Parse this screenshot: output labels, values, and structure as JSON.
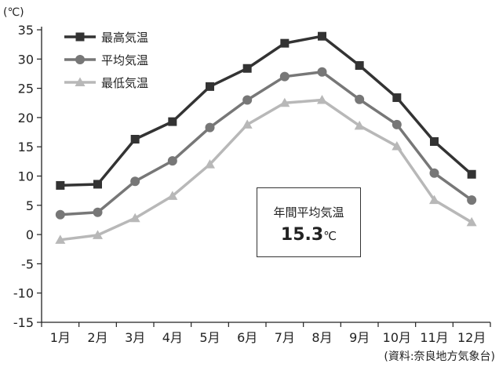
{
  "unit_label": "(℃)",
  "source": "(資料:奈良地方気象台)",
  "annual": {
    "label": "年間平均気温",
    "value": "15.3",
    "unit": "℃"
  },
  "chart_data": {
    "type": "line",
    "categories": [
      "1月",
      "2月",
      "3月",
      "4月",
      "5月",
      "6月",
      "7月",
      "8月",
      "9月",
      "10月",
      "11月",
      "12月"
    ],
    "ylim": [
      -15,
      35
    ],
    "yticks": [
      "35",
      "30",
      "25",
      "20",
      "15",
      "10",
      "5",
      "0",
      "-5",
      "-10",
      "-15"
    ],
    "grid": false,
    "legend_position": "top-left",
    "series": [
      {
        "name": "最高気温",
        "marker": "square",
        "color": "#333333",
        "values": [
          8.4,
          8.6,
          16.3,
          19.3,
          25.3,
          28.4,
          32.7,
          33.9,
          28.9,
          23.4,
          15.9,
          10.3
        ]
      },
      {
        "name": "平均気温",
        "marker": "circle",
        "color": "#777777",
        "values": [
          3.4,
          3.8,
          9.1,
          12.6,
          18.3,
          23.0,
          27.0,
          27.8,
          23.1,
          18.8,
          10.5,
          5.9
        ]
      },
      {
        "name": "最低気温",
        "marker": "triangle",
        "color": "#b8b8b8",
        "values": [
          -0.9,
          -0.1,
          2.8,
          6.6,
          12.0,
          18.8,
          22.5,
          23.0,
          18.6,
          15.1,
          5.9,
          2.1
        ]
      }
    ]
  }
}
